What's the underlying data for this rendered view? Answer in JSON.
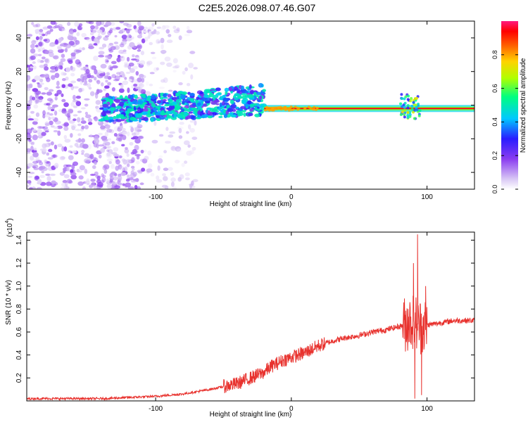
{
  "title": "C2E5.2026.098.07.46.G07",
  "chart_data": [
    {
      "type": "heatmap",
      "title": "C2E5.2026.098.07.46.G07",
      "xlabel": "Height of straight line (km)",
      "ylabel": "Frequency (Hz)",
      "xlim": [
        -195,
        135
      ],
      "ylim": [
        -50,
        50
      ],
      "xticks": [
        -100,
        0,
        100
      ],
      "xtick_labels": [
        "-100",
        "0",
        "100"
      ],
      "yticks": [
        -40,
        -20,
        0,
        20,
        40
      ],
      "ytick_labels": [
        "-40",
        "-20",
        "0",
        "20",
        "40"
      ],
      "colorbar": {
        "label": "Normalized spectral amplitude",
        "range": [
          0,
          1
        ],
        "ticks": [
          0,
          0.2,
          0.4,
          0.6,
          0.8
        ],
        "tick_labels": [
          "0.0",
          "0.2",
          "0.4",
          "0.6",
          "0.8"
        ]
      },
      "features": [
        {
          "name": "scattered noise",
          "x_range": [
            -195,
            -108
          ],
          "freq_range": [
            -50,
            50
          ],
          "amplitude": 0.1
        },
        {
          "name": "sparse noise",
          "x_range": [
            -108,
            -70
          ],
          "freq_range": [
            -50,
            50
          ],
          "amplitude": 0.05
        },
        {
          "name": "widening signal band",
          "x_range": [
            -140,
            -20
          ],
          "freq_range": [
            -10,
            12
          ],
          "amplitude": 0.3
        },
        {
          "name": "carrier line",
          "x_range": [
            -20,
            135
          ],
          "freq_center": -2,
          "amplitude": 0.95
        },
        {
          "name": "burst",
          "x_range": [
            80,
            95
          ],
          "freq_range": [
            -8,
            8
          ],
          "amplitude": 0.5
        }
      ]
    },
    {
      "type": "line",
      "title": "",
      "xlabel": "Height of straight line (km)",
      "ylabel": "SNR (10 * v/v)",
      "y_multiplier_label": "(x10",
      "y_multiplier_exp": "4",
      "y_multiplier_close": ")",
      "xlim": [
        -195,
        135
      ],
      "ylim": [
        0,
        1.47
      ],
      "xticks": [
        -100,
        0,
        100
      ],
      "xtick_labels": [
        "-100",
        "0",
        "100"
      ],
      "yticks": [
        0.2,
        0.4,
        0.6,
        0.8,
        1.0,
        1.2,
        1.4
      ],
      "ytick_labels": [
        "0.2",
        "0.4",
        "0.6",
        "0.8",
        "1.0",
        "1.2",
        "1.4"
      ],
      "color": "#e8322e",
      "x": [
        -195,
        -140,
        -100,
        -80,
        -60,
        -40,
        -30,
        -20,
        -15,
        -10,
        -5,
        0,
        5,
        10,
        15,
        20,
        30,
        40,
        50,
        60,
        70,
        80,
        85,
        90,
        95,
        100,
        110,
        120,
        135
      ],
      "y": [
        0.02,
        0.02,
        0.04,
        0.06,
        0.1,
        0.15,
        0.2,
        0.25,
        0.3,
        0.33,
        0.36,
        0.38,
        0.4,
        0.42,
        0.45,
        0.48,
        0.52,
        0.55,
        0.57,
        0.6,
        0.62,
        0.65,
        0.67,
        0.7,
        0.65,
        0.66,
        0.68,
        0.7,
        0.7
      ],
      "spikes": [
        {
          "x": 93,
          "y": 1.45
        },
        {
          "x": 90,
          "y": 1.2
        },
        {
          "x": 91,
          "y": 0.02
        },
        {
          "x": 96,
          "y": 0.05
        },
        {
          "x": 99,
          "y": 1.0
        },
        {
          "x": 86,
          "y": 0.8
        }
      ]
    }
  ]
}
